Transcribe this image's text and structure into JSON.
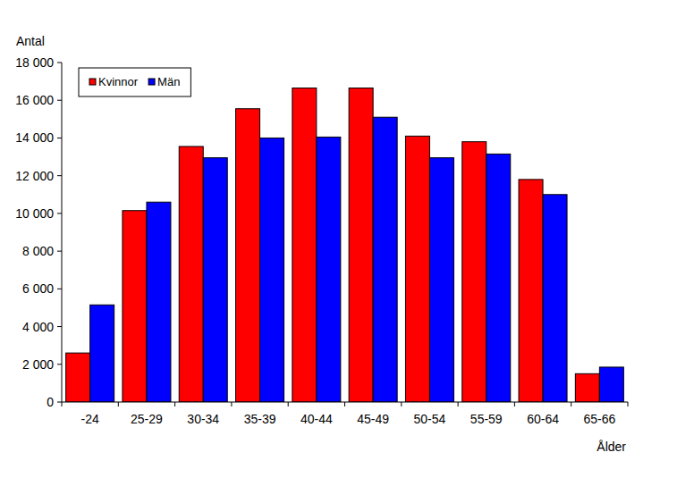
{
  "chart_data": {
    "type": "bar",
    "y_label": "Antal",
    "x_label": "Ålder",
    "categories": [
      "-24",
      "25-29",
      "30-34",
      "35-39",
      "40-44",
      "45-49",
      "50-54",
      "55-59",
      "60-64",
      "65-66"
    ],
    "series": [
      {
        "name": "Kvinnor",
        "color": "#ff0000",
        "values": [
          2600,
          10150,
          13550,
          15550,
          16650,
          16650,
          14100,
          13800,
          11800,
          1500
        ]
      },
      {
        "name": "Män",
        "color": "#0000ff",
        "values": [
          5150,
          10600,
          12950,
          14000,
          14050,
          15100,
          12950,
          13150,
          11000,
          1850
        ]
      }
    ],
    "ylim": [
      0,
      18000
    ],
    "yticks": [
      0,
      {
        "value": 2000,
        "label": "2 000"
      },
      {
        "value": 4000,
        "label": "4 000"
      },
      {
        "value": 6000,
        "label": "6 000"
      },
      {
        "value": 8000,
        "label": "8 000"
      },
      {
        "value": 10000,
        "label": "10 000"
      },
      {
        "value": 12000,
        "label": "12 000"
      },
      {
        "value": 14000,
        "label": "14 000"
      },
      {
        "value": 16000,
        "label": "16 000"
      },
      {
        "value": 18000,
        "label": "18 000"
      }
    ],
    "grid": false,
    "legend": "upper left"
  }
}
